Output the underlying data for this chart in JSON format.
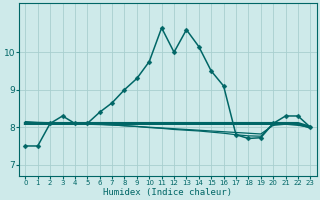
{
  "xlabel": "Humidex (Indice chaleur)",
  "background_color": "#ceeaea",
  "grid_color": "#a8cfcf",
  "line_color": "#006666",
  "x_ticks": [
    0,
    1,
    2,
    3,
    4,
    5,
    6,
    7,
    8,
    9,
    10,
    11,
    12,
    13,
    14,
    15,
    16,
    17,
    18,
    19,
    20,
    21,
    22,
    23
  ],
  "y_ticks": [
    7,
    8,
    9,
    10
  ],
  "ylim": [
    6.7,
    11.3
  ],
  "xlim": [
    -0.5,
    23.5
  ],
  "lines": [
    {
      "x": [
        0,
        1,
        2,
        3,
        4,
        5,
        6,
        7,
        8,
        9,
        10,
        11,
        12,
        13,
        14,
        15,
        16,
        17,
        18,
        19,
        20,
        21,
        22,
        23
      ],
      "y": [
        7.5,
        7.5,
        8.1,
        8.3,
        8.1,
        8.1,
        8.4,
        8.65,
        9.0,
        9.3,
        9.75,
        10.65,
        10.0,
        10.6,
        10.15,
        9.5,
        9.1,
        7.8,
        7.7,
        7.72,
        8.1,
        8.3,
        8.3,
        8.0
      ],
      "marker": "D",
      "linewidth": 1.1,
      "markersize": 2.5,
      "zorder": 5
    },
    {
      "x": [
        0,
        1,
        2,
        3,
        4,
        5,
        6,
        7,
        8,
        9,
        10,
        11,
        12,
        13,
        14,
        15,
        16,
        17,
        18,
        19,
        20,
        21,
        22,
        23
      ],
      "y": [
        8.1,
        8.1,
        8.1,
        8.1,
        8.1,
        8.1,
        8.1,
        8.1,
        8.1,
        8.1,
        8.1,
        8.1,
        8.1,
        8.1,
        8.1,
        8.1,
        8.1,
        8.1,
        8.1,
        8.1,
        8.1,
        8.1,
        8.1,
        8.0
      ],
      "marker": null,
      "linewidth": 2.2,
      "markersize": 0,
      "zorder": 3
    },
    {
      "x": [
        0,
        1,
        2,
        3,
        4,
        5,
        6,
        7,
        8,
        9,
        10,
        11,
        12,
        13,
        14,
        15,
        16,
        17,
        18,
        19,
        20,
        21,
        22,
        23
      ],
      "y": [
        8.15,
        8.13,
        8.12,
        8.11,
        8.1,
        8.09,
        8.08,
        8.06,
        8.04,
        8.02,
        8.0,
        7.98,
        7.96,
        7.94,
        7.92,
        7.9,
        7.88,
        7.86,
        7.84,
        7.82,
        8.05,
        8.08,
        8.05,
        8.0
      ],
      "marker": null,
      "linewidth": 0.9,
      "markersize": 0,
      "zorder": 2
    },
    {
      "x": [
        2,
        3,
        4,
        5,
        6,
        7,
        8,
        9,
        10,
        11,
        12,
        13,
        14,
        15,
        16,
        17,
        18,
        19,
        20,
        21,
        22,
        23
      ],
      "y": [
        8.1,
        8.1,
        8.09,
        8.08,
        8.07,
        8.06,
        8.04,
        8.02,
        7.99,
        7.97,
        7.94,
        7.92,
        7.9,
        7.87,
        7.84,
        7.8,
        7.77,
        7.76,
        8.1,
        8.12,
        8.08,
        8.0
      ],
      "marker": null,
      "linewidth": 0.9,
      "markersize": 0,
      "zorder": 2
    }
  ]
}
